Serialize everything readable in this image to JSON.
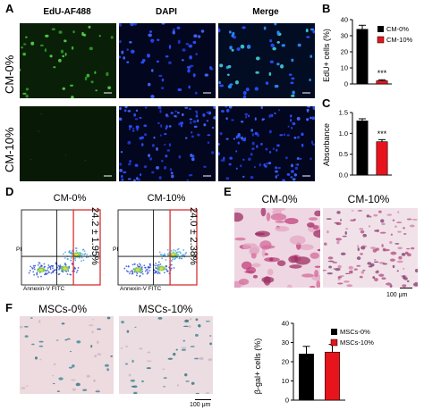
{
  "panels": {
    "A": {
      "letter": "A",
      "columns": [
        "EdU-AF488",
        "DAPI",
        "Merge"
      ],
      "rows": [
        "CM-0%",
        "CM-10%"
      ]
    },
    "B": {
      "letter": "B",
      "ylabel": "EdU+ cells (%)",
      "significance": "***",
      "legend": [
        "CM-0%",
        "CM-10%"
      ]
    },
    "C": {
      "letter": "C",
      "ylabel": "Absorbance",
      "significance": "***"
    },
    "D": {
      "letter": "D",
      "plots": [
        {
          "title": "CM-0%",
          "quadrant_value": "24.2 ± 1.95%"
        },
        {
          "title": "CM-10%",
          "quadrant_value": "24.0 ± 2.38%"
        }
      ],
      "xlabel": "Annexin-V FITC",
      "ylabel": "PI"
    },
    "E": {
      "letter": "E",
      "titles": [
        "CM-0%",
        "CM-10%"
      ],
      "scalebar": "100 μm"
    },
    "F": {
      "letter": "F",
      "titles": [
        "MSCs-0%",
        "MSCs-10%"
      ],
      "scalebar": "100 μm",
      "ylabel": "β-gal+ cells (%)",
      "legend": [
        "MSCs-0%",
        "MSCs-10%"
      ]
    }
  },
  "colors": {
    "control": "#000000",
    "treated": "#e8141c",
    "edu_green": "#3ec43a",
    "dapi_blue": "#2a4dff",
    "he_pink": "#c0407a",
    "xgal_blue": "#1f6b78"
  },
  "chart_data": [
    {
      "type": "bar",
      "title": "",
      "categories": [
        "CM-0%",
        "CM-10%"
      ],
      "values": [
        34,
        2
      ],
      "errors": [
        2.5,
        0.6
      ],
      "ylabel": "EdU+ cells (%)",
      "ylim": [
        0,
        40
      ],
      "yticks": [
        0,
        10,
        20,
        30,
        40
      ],
      "annotation": "***"
    },
    {
      "type": "bar",
      "title": "",
      "categories": [
        "CM-0%",
        "CM-10%"
      ],
      "values": [
        1.3,
        0.8
      ],
      "errors": [
        0.05,
        0.05
      ],
      "ylabel": "Absorbance",
      "ylim": [
        0,
        1.5
      ],
      "yticks": [
        0.0,
        0.5,
        1.0,
        1.5
      ],
      "annotation": "***"
    },
    {
      "type": "bar",
      "title": "",
      "categories": [
        "MSCs-0%",
        "MSCs-10%"
      ],
      "values": [
        24,
        25
      ],
      "errors": [
        4,
        4
      ],
      "ylabel": "β-gal+ cells (%)",
      "ylim": [
        0,
        40
      ],
      "yticks": [
        0,
        10,
        20,
        30,
        40
      ]
    }
  ]
}
